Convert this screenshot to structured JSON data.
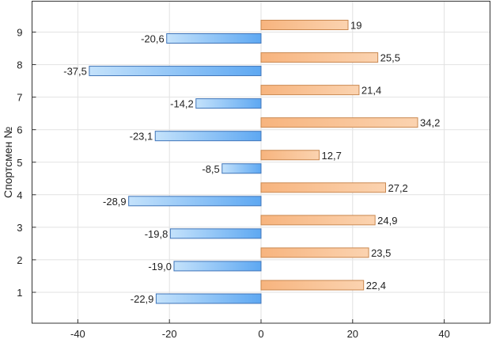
{
  "chart_data": {
    "type": "bar",
    "orientation": "horizontal",
    "title": "",
    "xlabel": "",
    "ylabel": "Спортсмен №",
    "categories": [
      "1",
      "2",
      "3",
      "4",
      "5",
      "6",
      "7",
      "8",
      "9"
    ],
    "series": [
      {
        "name": "positive",
        "color": "#f5a96e",
        "values": [
          22.4,
          23.5,
          24.9,
          27.2,
          12.7,
          34.2,
          21.4,
          25.5,
          19
        ],
        "labels": [
          "22,4",
          "23,5",
          "24,9",
          "27,2",
          "12,7",
          "34,2",
          "21,4",
          "25,5",
          "19"
        ]
      },
      {
        "name": "negative",
        "color": "#5ea8f2",
        "values": [
          -22.9,
          -19.0,
          -19.8,
          -28.9,
          -8.5,
          -23.1,
          -14.2,
          -37.5,
          -20.6
        ],
        "labels": [
          "-22,9",
          "-19,0",
          "-19,8",
          "-28,9",
          "-8,5",
          "-23,1",
          "-14,2",
          "-37,5",
          "-20,6"
        ]
      }
    ],
    "xticks": [
      -40,
      -20,
      0,
      20,
      40
    ],
    "xlim": [
      -50,
      50
    ],
    "ylim": [
      0.05,
      9.95
    ],
    "grid": true,
    "legend": "none"
  }
}
